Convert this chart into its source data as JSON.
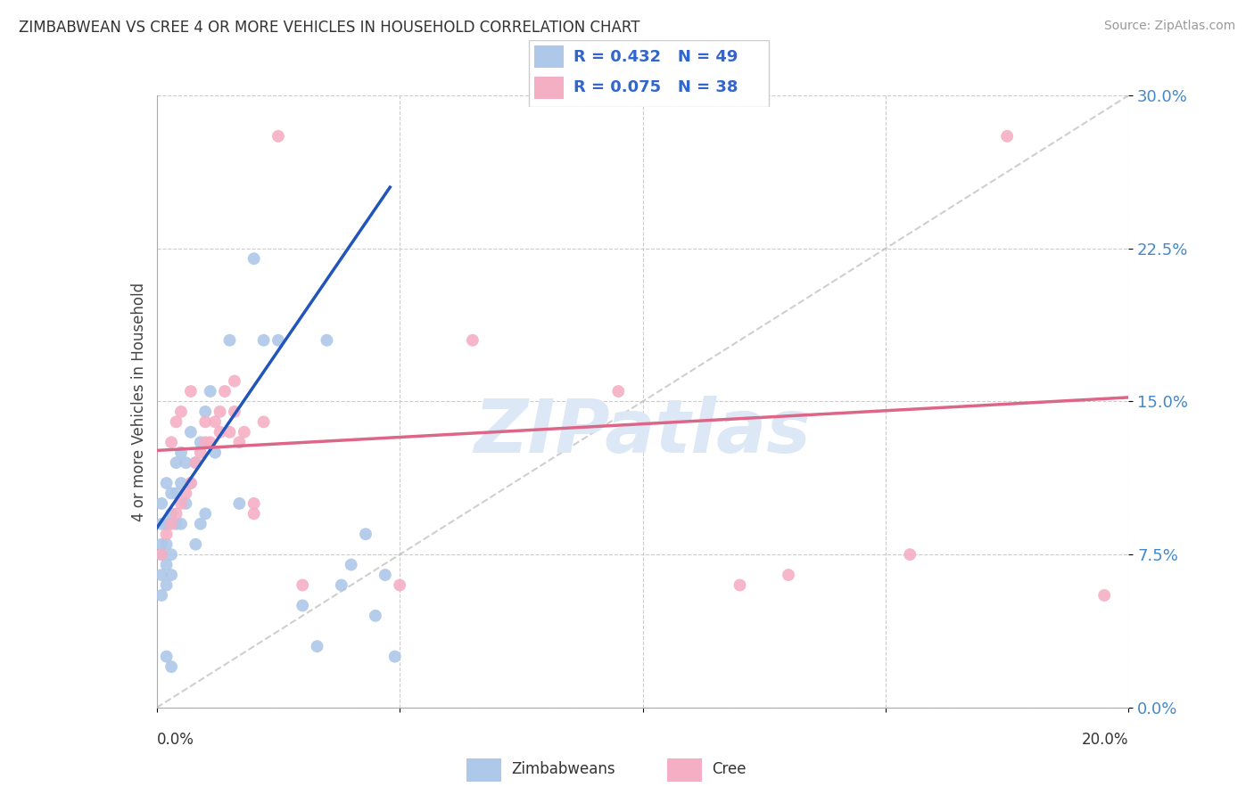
{
  "title": "ZIMBABWEAN VS CREE 4 OR MORE VEHICLES IN HOUSEHOLD CORRELATION CHART",
  "source": "Source: ZipAtlas.com",
  "ylabel": "4 or more Vehicles in Household",
  "xlim": [
    0.0,
    0.2
  ],
  "ylim": [
    0.0,
    0.3
  ],
  "yticks": [
    0.0,
    0.075,
    0.15,
    0.225,
    0.3
  ],
  "ytick_labels": [
    "0.0%",
    "7.5%",
    "15.0%",
    "22.5%",
    "30.0%"
  ],
  "r_zimbabwean": 0.432,
  "n_zimbabwean": 49,
  "r_cree": 0.075,
  "n_cree": 38,
  "color_zimbabwean": "#adc8e8",
  "color_cree": "#f4afc4",
  "line_color_zimbabwean": "#2255bb",
  "line_color_cree": "#dd6688",
  "watermark_color": "#dce8f5",
  "zim_x": [
    0.001,
    0.001,
    0.001,
    0.001,
    0.001,
    0.001,
    0.002,
    0.002,
    0.002,
    0.002,
    0.002,
    0.003,
    0.003,
    0.003,
    0.003,
    0.004,
    0.004,
    0.004,
    0.005,
    0.005,
    0.005,
    0.006,
    0.006,
    0.007,
    0.007,
    0.008,
    0.008,
    0.009,
    0.009,
    0.01,
    0.01,
    0.011,
    0.012,
    0.015,
    0.017,
    0.02,
    0.022,
    0.025,
    0.03,
    0.033,
    0.035,
    0.038,
    0.04,
    0.043,
    0.045,
    0.047,
    0.049,
    0.002,
    0.003
  ],
  "zim_y": [
    0.055,
    0.065,
    0.075,
    0.08,
    0.09,
    0.1,
    0.06,
    0.07,
    0.08,
    0.09,
    0.11,
    0.065,
    0.075,
    0.095,
    0.105,
    0.09,
    0.105,
    0.12,
    0.09,
    0.11,
    0.125,
    0.1,
    0.12,
    0.11,
    0.135,
    0.08,
    0.12,
    0.09,
    0.13,
    0.095,
    0.145,
    0.155,
    0.125,
    0.18,
    0.1,
    0.22,
    0.18,
    0.18,
    0.05,
    0.03,
    0.18,
    0.06,
    0.07,
    0.085,
    0.045,
    0.065,
    0.025,
    0.025,
    0.02
  ],
  "cree_x": [
    0.001,
    0.002,
    0.003,
    0.004,
    0.005,
    0.006,
    0.007,
    0.008,
    0.009,
    0.01,
    0.011,
    0.012,
    0.013,
    0.014,
    0.015,
    0.016,
    0.016,
    0.018,
    0.02,
    0.022,
    0.025,
    0.03,
    0.05,
    0.065,
    0.095,
    0.12,
    0.13,
    0.155,
    0.175,
    0.195,
    0.003,
    0.004,
    0.005,
    0.007,
    0.01,
    0.013,
    0.017,
    0.02
  ],
  "cree_y": [
    0.075,
    0.085,
    0.09,
    0.095,
    0.1,
    0.105,
    0.11,
    0.12,
    0.125,
    0.13,
    0.13,
    0.14,
    0.145,
    0.155,
    0.135,
    0.145,
    0.16,
    0.135,
    0.1,
    0.14,
    0.28,
    0.06,
    0.06,
    0.18,
    0.155,
    0.06,
    0.065,
    0.075,
    0.28,
    0.055,
    0.13,
    0.14,
    0.145,
    0.155,
    0.14,
    0.135,
    0.13,
    0.095
  ]
}
